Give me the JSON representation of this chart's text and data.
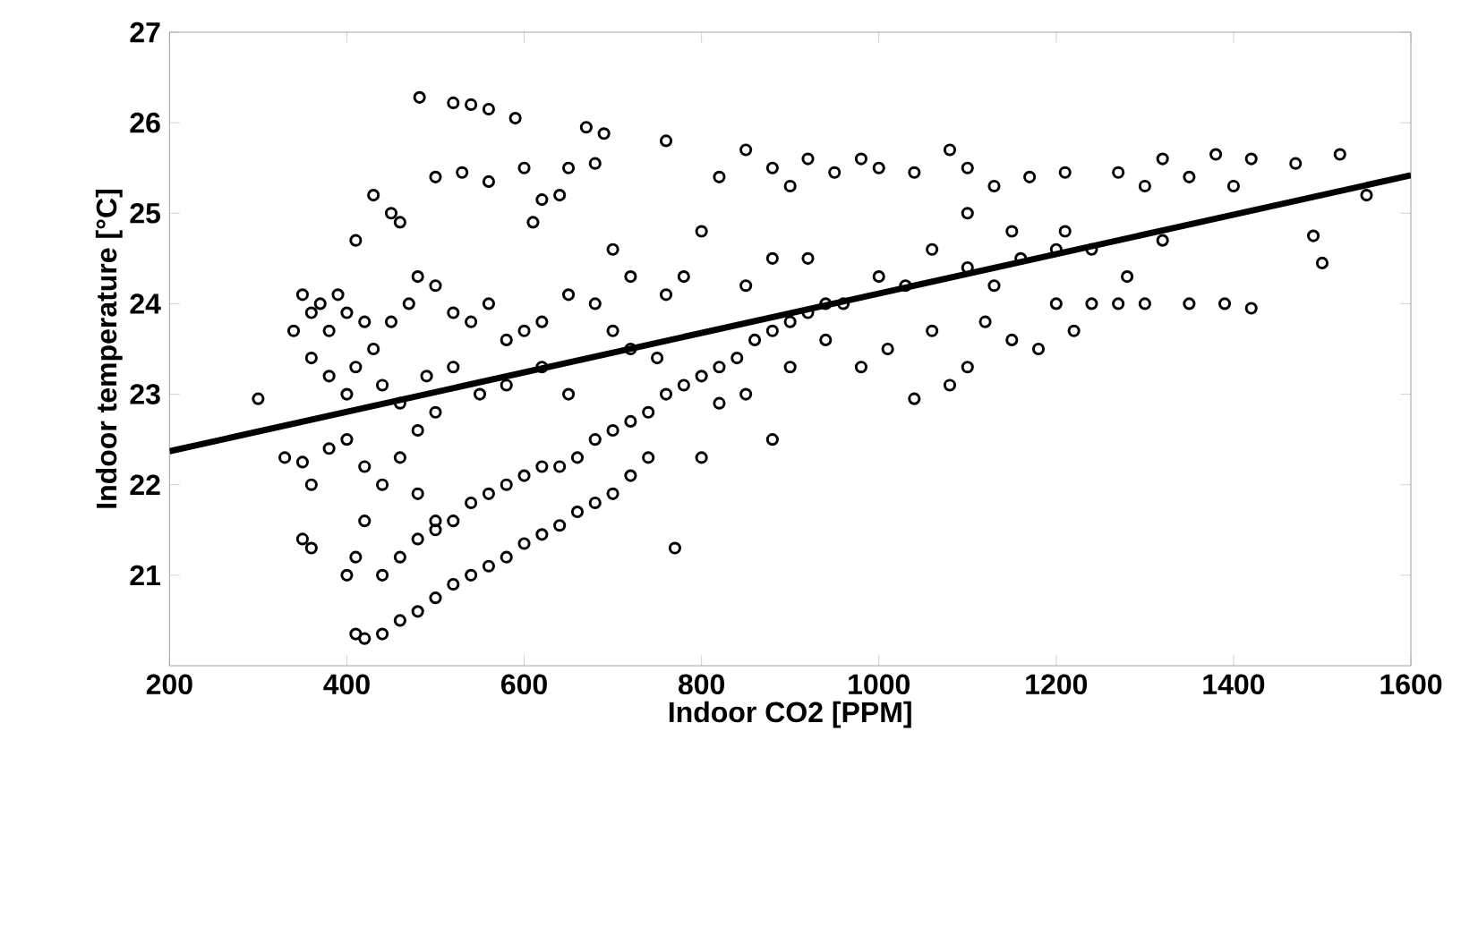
{
  "chart_data": {
    "type": "scatter",
    "xlabel": "Indoor CO2 [PPM]",
    "ylabel": "Indoor temperature [°C]",
    "xlim": [
      200,
      1600
    ],
    "ylim": [
      20,
      27
    ],
    "xticks": [
      200,
      400,
      600,
      800,
      1000,
      1200,
      1400,
      1600
    ],
    "yticks": [
      21,
      22,
      23,
      24,
      25,
      26,
      27
    ],
    "series": [
      {
        "color": "#000000",
        "marker": "circle",
        "x": [
          482,
          520,
          540,
          560,
          590,
          670,
          690,
          760,
          430,
          450,
          410,
          460,
          500,
          530,
          560,
          600,
          620,
          610,
          640,
          680,
          650,
          350,
          360,
          370,
          380,
          390,
          400,
          420,
          430,
          450,
          470,
          480,
          500,
          520,
          540,
          560,
          580,
          600,
          620,
          650,
          680,
          700,
          720,
          340,
          360,
          380,
          400,
          410,
          440,
          460,
          490,
          520,
          550,
          580,
          620,
          650,
          300,
          330,
          350,
          360,
          380,
          400,
          420,
          440,
          460,
          480,
          500,
          350,
          360,
          400,
          410,
          420,
          480,
          500,
          410,
          420,
          440,
          460,
          480,
          500,
          520,
          540,
          560,
          580,
          600,
          620,
          640,
          660,
          680,
          700,
          720,
          740,
          770,
          440,
          460,
          480,
          500,
          520,
          540,
          560,
          580,
          600,
          620,
          640,
          660,
          680,
          700,
          720,
          740,
          760,
          780,
          800,
          820,
          840,
          860,
          880,
          900,
          920,
          940,
          760,
          780,
          800,
          820,
          850,
          880,
          900,
          920,
          950,
          980,
          1000,
          1040,
          1080,
          1100,
          1130,
          1170,
          1210,
          1270,
          1320,
          1350,
          1380,
          1420,
          1470,
          1520,
          1550,
          1490,
          1500,
          1400,
          1300,
          850,
          880,
          920,
          960,
          1000,
          1030,
          1060,
          1100,
          1130,
          1160,
          1200,
          1240,
          1280,
          1320,
          900,
          940,
          980,
          1010,
          1040,
          1060,
          1080,
          1100,
          1120,
          1150,
          1180,
          1200,
          1220,
          1240,
          1270,
          1300,
          1350,
          1390,
          1420,
          1150,
          1210,
          1100,
          700,
          720,
          750,
          800,
          820,
          850,
          880
        ],
        "values": [
          26.28,
          26.22,
          26.2,
          26.15,
          26.05,
          25.95,
          25.88,
          25.8,
          25.2,
          25.0,
          24.7,
          24.9,
          25.4,
          25.45,
          25.35,
          25.5,
          25.15,
          24.9,
          25.2,
          25.55,
          25.5,
          24.1,
          23.9,
          24.0,
          23.7,
          24.1,
          23.9,
          23.8,
          23.5,
          23.8,
          24.0,
          24.3,
          24.2,
          23.9,
          23.8,
          24.0,
          23.6,
          23.7,
          23.8,
          24.1,
          24.0,
          23.7,
          23.5,
          23.7,
          23.4,
          23.2,
          23.0,
          23.3,
          23.1,
          22.9,
          23.2,
          23.3,
          23.0,
          23.1,
          23.3,
          23.0,
          22.95,
          22.3,
          22.25,
          22.0,
          22.4,
          22.5,
          22.2,
          22.0,
          22.3,
          22.6,
          22.8,
          21.4,
          21.3,
          21.0,
          21.2,
          21.6,
          21.9,
          21.6,
          20.35,
          20.3,
          20.35,
          20.5,
          20.6,
          20.75,
          20.9,
          21.0,
          21.1,
          21.2,
          21.35,
          21.45,
          21.55,
          21.7,
          21.8,
          21.9,
          22.1,
          22.3,
          21.3,
          21.0,
          21.2,
          21.4,
          21.5,
          21.6,
          21.8,
          21.9,
          22.0,
          22.1,
          22.2,
          22.2,
          22.3,
          22.5,
          22.6,
          22.7,
          22.8,
          23.0,
          23.1,
          23.2,
          23.3,
          23.4,
          23.6,
          23.7,
          23.8,
          23.9,
          24.0,
          24.1,
          24.3,
          24.8,
          25.4,
          25.7,
          25.5,
          25.3,
          25.6,
          25.45,
          25.6,
          25.5,
          25.45,
          25.7,
          25.5,
          25.3,
          25.4,
          25.45,
          25.45,
          25.6,
          25.4,
          25.65,
          25.6,
          25.55,
          25.65,
          25.2,
          24.75,
          24.45,
          25.3,
          25.3,
          24.2,
          24.5,
          24.5,
          24.0,
          24.3,
          24.2,
          24.6,
          24.4,
          24.2,
          24.5,
          24.6,
          24.6,
          24.3,
          24.7,
          23.3,
          23.6,
          23.3,
          23.5,
          22.95,
          23.7,
          23.1,
          23.3,
          23.8,
          23.6,
          23.5,
          24.0,
          23.7,
          24.0,
          24.0,
          24.0,
          24.0,
          24.0,
          23.95,
          24.8,
          24.8,
          25.0,
          24.6,
          24.3,
          23.4,
          22.3,
          22.9,
          23.0,
          22.5
        ]
      },
      {
        "type": "line",
        "color": "#000000",
        "marker": "none",
        "x": [
          200,
          1600
        ],
        "values": [
          22.37,
          25.42
        ]
      }
    ]
  }
}
